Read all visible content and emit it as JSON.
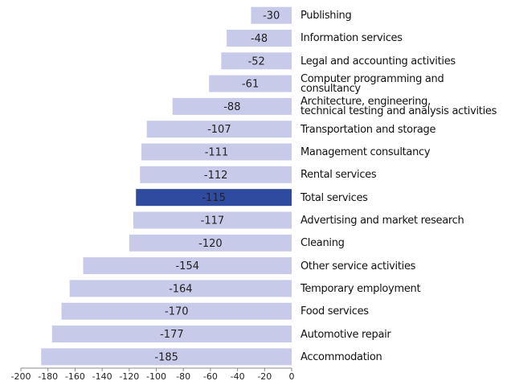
{
  "chart_data": {
    "type": "barh",
    "categories": [
      "Publishing",
      "Information services",
      "Legal and accounting activities",
      "Computer programming and consultancy",
      "Architecture, engineering,\ntechnical testing and analysis activities",
      "Transportation and storage",
      "Management consultancy",
      "Rental services",
      "Total services",
      "Advertising and market research",
      "Cleaning",
      "Other service activities",
      "Temporary employment",
      "Food services",
      "Automotive repair",
      "Accommodation"
    ],
    "values": [
      -30,
      -48,
      -52,
      -61,
      -88,
      -107,
      -111,
      -112,
      -115,
      -117,
      -120,
      -154,
      -164,
      -170,
      -177,
      -185
    ],
    "color": "#c7cae8",
    "highlight": "Total services",
    "highlight_color": "#2f4b9f",
    "xlim": [
      -200,
      0
    ],
    "xticks": [
      -200,
      -180,
      -160,
      -140,
      -120,
      -100,
      -80,
      -60,
      -40,
      -20,
      0
    ]
  }
}
